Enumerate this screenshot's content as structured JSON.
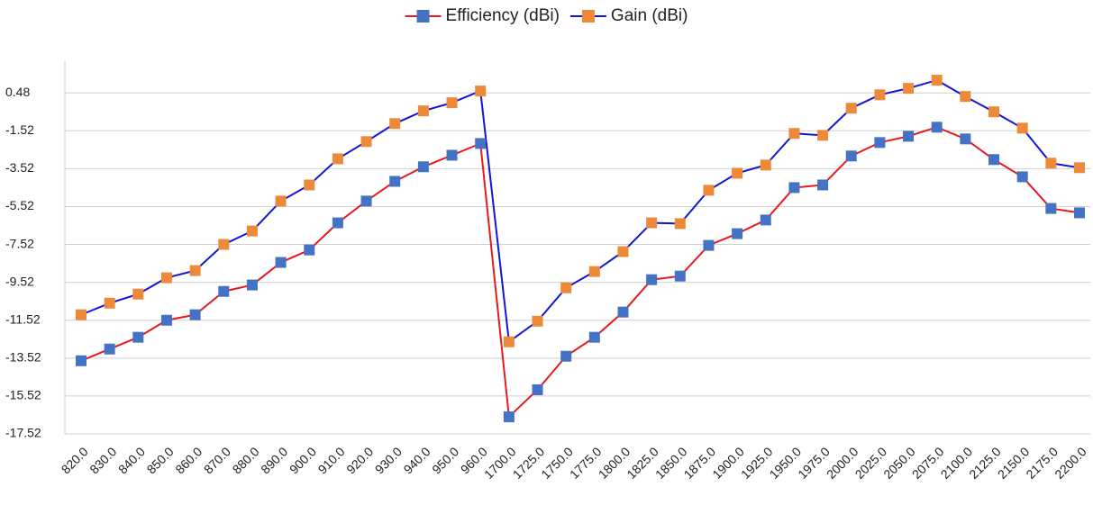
{
  "chart_data": {
    "type": "line",
    "categories": [
      "820.0",
      "830.0",
      "840.0",
      "850.0",
      "860.0",
      "870.0",
      "880.0",
      "890.0",
      "900.0",
      "910.0",
      "920.0",
      "930.0",
      "940.0",
      "950.0",
      "960.0",
      "1700.0",
      "1725.0",
      "1750.0",
      "1775.0",
      "1800.0",
      "1825.0",
      "1850.0",
      "1875.0",
      "1900.0",
      "1925.0",
      "1950.0",
      "1975.0",
      "2000.0",
      "2025.0",
      "2050.0",
      "2075.0",
      "2100.0",
      "2125.0",
      "2150.0",
      "2175.0",
      "2200.0"
    ],
    "series": [
      {
        "name": "Efficiency (dBi)",
        "color": "#e8191c",
        "marker_color": "#4472c4",
        "values": [
          -13.66,
          -13.04,
          -12.42,
          -11.52,
          -11.23,
          -10.0,
          -9.66,
          -8.47,
          -7.81,
          -6.38,
          -5.23,
          -4.19,
          -3.42,
          -2.81,
          -2.19,
          -16.62,
          -15.19,
          -13.42,
          -12.42,
          -11.09,
          -9.38,
          -9.19,
          -7.57,
          -6.95,
          -6.23,
          -4.52,
          -4.38,
          -2.85,
          -2.14,
          -1.81,
          -1.33,
          -1.95,
          -3.04,
          -3.95,
          -5.62,
          -5.85
        ]
      },
      {
        "name": "Gain (dBi)",
        "color": "#1414d8",
        "marker_color": "#ed8a3a",
        "values": [
          -11.23,
          -10.62,
          -10.14,
          -9.28,
          -8.9,
          -7.52,
          -6.81,
          -5.23,
          -4.38,
          -3.0,
          -2.09,
          -1.14,
          -0.47,
          -0.04,
          0.58,
          -12.66,
          -11.57,
          -9.81,
          -8.95,
          -7.9,
          -6.38,
          -6.42,
          -4.66,
          -3.76,
          -3.33,
          -1.66,
          -1.76,
          -0.33,
          0.38,
          0.72,
          1.15,
          0.29,
          -0.52,
          -1.38,
          -3.23,
          -3.47
        ]
      }
    ],
    "ylim": [
      -17.52,
      2.2
    ],
    "yticks": [
      0.48,
      -1.52,
      -3.52,
      -5.52,
      -7.52,
      -9.52,
      -11.52,
      -13.52,
      -15.52,
      -17.52
    ],
    "grid": true,
    "legend": "top"
  }
}
